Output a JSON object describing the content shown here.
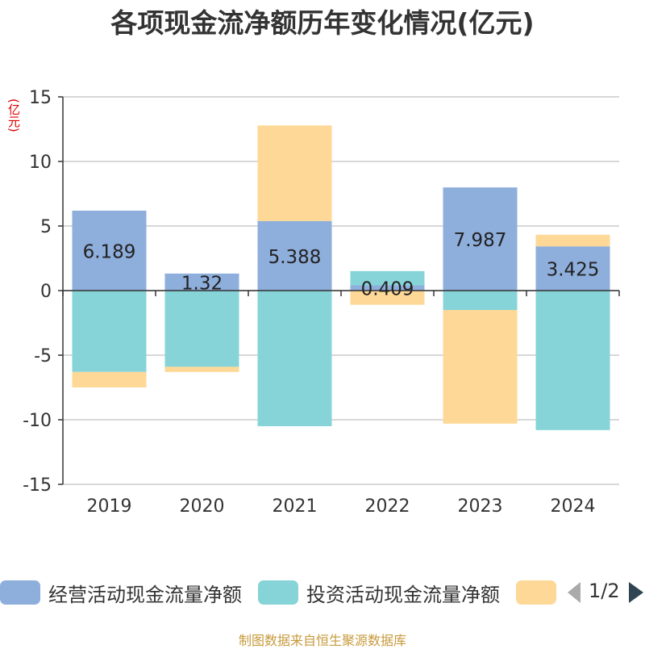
{
  "chart_data": {
    "type": "bar",
    "stacked": true,
    "title": "各项现金流净额历年变化情况(亿元)",
    "ylabel": "(亿元)",
    "xlabel": "",
    "categories": [
      "2019",
      "2020",
      "2021",
      "2022",
      "2023",
      "2024"
    ],
    "ylim": [
      -15,
      15
    ],
    "yticks": [
      15,
      10,
      5,
      0,
      -5,
      -10,
      -15
    ],
    "grid": true,
    "series": [
      {
        "name": "经营活动现金流量净额",
        "color": "#8eaedc",
        "values": [
          6.189,
          1.32,
          5.388,
          0.409,
          7.987,
          3.425
        ],
        "labels": [
          "6.189",
          "1.32",
          "5.388",
          "0.409",
          "7.987",
          "3.425"
        ]
      },
      {
        "name": "投资活动现金流量净额",
        "color": "#86d4d8",
        "values": [
          -6.3,
          -5.9,
          -10.5,
          1.1,
          -1.5,
          -10.8
        ]
      },
      {
        "name": "",
        "color": "#fed896",
        "values": [
          -1.2,
          -0.4,
          7.4,
          -1.1,
          -8.8,
          0.9
        ]
      }
    ],
    "legend_position": "bottom"
  },
  "legend": {
    "items": [
      "经营活动现金流量净额",
      "投资活动现金流量净额",
      ""
    ],
    "page": "1/2"
  },
  "footer": {
    "source": "制图数据来自恒生聚源数据库"
  }
}
